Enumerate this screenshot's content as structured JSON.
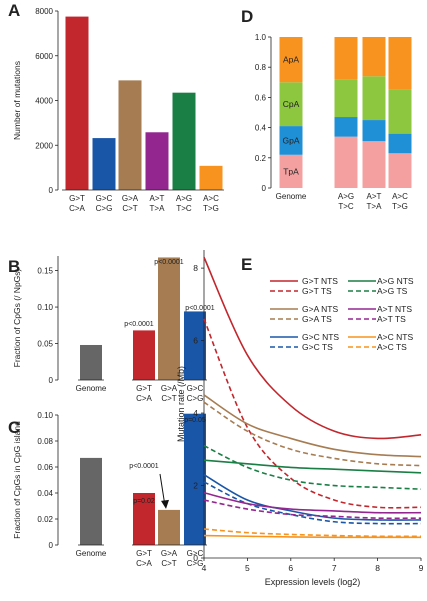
{
  "panel_letters": [
    "A",
    "B",
    "C",
    "D",
    "E"
  ],
  "chart_data": [
    {
      "panel": "A",
      "type": "bar",
      "ylabel": "Number of mutations",
      "ylim": [
        0,
        8000
      ],
      "yticks": [
        0,
        2000,
        4000,
        6000,
        8000
      ],
      "categories": [
        [
          "G>T",
          "C>A"
        ],
        [
          "G>C",
          "C>G"
        ],
        [
          "G>A",
          "C>T"
        ],
        [
          "A>T",
          "T>A"
        ],
        [
          "A>G",
          "T>C"
        ],
        [
          "A>C",
          "T>G"
        ]
      ],
      "values": [
        7750,
        2320,
        4900,
        2580,
        4350,
        1080
      ],
      "colors": [
        "#c1272d",
        "#1a56a8",
        "#a67c52",
        "#93278f",
        "#1a7f45",
        "#f7931e"
      ]
    },
    {
      "panel": "B",
      "type": "bar",
      "ylabel": "Fraction of CpGs (/ NpGs)",
      "ylim": [
        0,
        0.17
      ],
      "yticks": [
        0,
        0.05,
        0.1,
        0.15
      ],
      "ytick_labels": [
        "0",
        "0.05",
        "0.10",
        "0.15"
      ],
      "categories": [
        [
          "Genome"
        ],
        [
          "G>T",
          "C>A"
        ],
        [
          "G>A",
          "C>T"
        ],
        [
          "G>C",
          "C>G"
        ]
      ],
      "values": [
        0.048,
        0.068,
        0.168,
        0.094
      ],
      "annotations": [
        "",
        "p<0.0001",
        "p<0.0001",
        "p<0.0001"
      ],
      "colors": [
        "#666666",
        "#c1272d",
        "#a67c52",
        "#1a56a8"
      ]
    },
    {
      "panel": "C",
      "type": "bar",
      "ylabel": "Fraction of CpGs in CpG island",
      "ylim": [
        0,
        0.1
      ],
      "yticks": [
        0,
        0.02,
        0.04,
        0.06,
        0.08,
        0.1
      ],
      "ytick_labels": [
        "0",
        "0.02",
        "0.04",
        "0.06",
        "0.08",
        "0.10"
      ],
      "categories": [
        [
          "Genome"
        ],
        [
          "G>T",
          "C>A"
        ],
        [
          "G>A",
          "C>T"
        ],
        [
          "G>C",
          "C>G"
        ]
      ],
      "values": [
        0.067,
        0.04,
        0.027,
        0.101
      ],
      "annotations": [
        "",
        "p=0.02",
        "p<0.0001",
        "p=0.05"
      ],
      "colors": [
        "#666666",
        "#c1272d",
        "#a67c52",
        "#1a56a8"
      ]
    },
    {
      "panel": "D",
      "type": "bar",
      "stacked": true,
      "ylim": [
        0,
        1
      ],
      "yticks": [
        0,
        0.2,
        0.4,
        0.6,
        0.8,
        1.0
      ],
      "ytick_labels": [
        "0",
        "0.2",
        "0.4",
        "0.6",
        "0.8",
        "1.0"
      ],
      "categories": [
        [
          "Genome"
        ],
        [
          "A>G",
          "T>C"
        ],
        [
          "A>T",
          "T>A"
        ],
        [
          "A>C",
          "T>G"
        ]
      ],
      "series": [
        {
          "name": "TpA",
          "color": "#f4a0a0",
          "values": [
            0.22,
            0.34,
            0.31,
            0.23
          ]
        },
        {
          "name": "GpA",
          "color": "#1f8fd6",
          "values": [
            0.19,
            0.13,
            0.14,
            0.13
          ]
        },
        {
          "name": "CpA",
          "color": "#8dc63f",
          "values": [
            0.29,
            0.25,
            0.29,
            0.29
          ]
        },
        {
          "name": "ApA",
          "color": "#f7931e",
          "values": [
            0.3,
            0.28,
            0.26,
            0.35
          ]
        }
      ]
    },
    {
      "panel": "E",
      "type": "line",
      "xlabel": "Expression levels (log2)",
      "ylabel": "Mutation rate (/Mb)",
      "xlim": [
        4,
        9
      ],
      "ylim": [
        0,
        8.5
      ],
      "xticks": [
        4,
        5,
        6,
        7,
        8,
        9
      ],
      "yticks": [
        0,
        2,
        4,
        6,
        8
      ],
      "series": [
        {
          "name": "G>T NTS",
          "color": "#c1272d",
          "dash": false,
          "x": [
            4,
            5,
            6,
            7,
            8,
            9
          ],
          "y": [
            8.3,
            5.6,
            4.2,
            3.5,
            3.3,
            3.4
          ]
        },
        {
          "name": "G>T TS",
          "color": "#c1272d",
          "dash": true,
          "x": [
            4,
            5,
            6,
            7,
            8,
            9
          ],
          "y": [
            6.6,
            3.6,
            2.2,
            1.6,
            1.4,
            1.4
          ]
        },
        {
          "name": "G>A NTS",
          "color": "#a67c52",
          "dash": false,
          "x": [
            4,
            5,
            6,
            7,
            8,
            9
          ],
          "y": [
            4.5,
            3.7,
            3.3,
            3.0,
            2.85,
            2.8
          ]
        },
        {
          "name": "G>A TS",
          "color": "#a67c52",
          "dash": true,
          "x": [
            4,
            5,
            6,
            7,
            8,
            9
          ],
          "y": [
            4.3,
            3.5,
            3.0,
            2.75,
            2.6,
            2.55
          ]
        },
        {
          "name": "G>C NTS",
          "color": "#1a56a8",
          "dash": false,
          "x": [
            4,
            5,
            6,
            7,
            8,
            9
          ],
          "y": [
            2.3,
            1.6,
            1.3,
            1.1,
            1.05,
            1.05
          ]
        },
        {
          "name": "G>C TS",
          "color": "#1a56a8",
          "dash": true,
          "x": [
            4,
            5,
            6,
            7,
            8,
            9
          ],
          "y": [
            2.1,
            1.5,
            1.2,
            1.0,
            0.95,
            0.95
          ]
        },
        {
          "name": "A>G NTS",
          "color": "#1a7f45",
          "dash": false,
          "x": [
            4,
            5,
            6,
            7,
            8,
            9
          ],
          "y": [
            2.7,
            2.6,
            2.5,
            2.45,
            2.4,
            2.35
          ]
        },
        {
          "name": "A>G TS",
          "color": "#1a7f45",
          "dash": true,
          "x": [
            4,
            5,
            6,
            7,
            8,
            9
          ],
          "y": [
            3.1,
            2.5,
            2.15,
            2.0,
            1.95,
            1.9
          ]
        },
        {
          "name": "A>T NTS",
          "color": "#93278f",
          "dash": false,
          "x": [
            4,
            5,
            6,
            7,
            8,
            9
          ],
          "y": [
            1.8,
            1.5,
            1.35,
            1.3,
            1.25,
            1.25
          ]
        },
        {
          "name": "A>T TS",
          "color": "#93278f",
          "dash": true,
          "x": [
            4,
            5,
            6,
            7,
            8,
            9
          ],
          "y": [
            1.6,
            1.35,
            1.2,
            1.15,
            1.1,
            1.1
          ]
        },
        {
          "name": "A>C NTS",
          "color": "#f7931e",
          "dash": false,
          "x": [
            4,
            5,
            6,
            7,
            8,
            9
          ],
          "y": [
            0.62,
            0.6,
            0.58,
            0.57,
            0.57,
            0.57
          ]
        },
        {
          "name": "A>C TS",
          "color": "#f7931e",
          "dash": true,
          "x": [
            4,
            5,
            6,
            7,
            8,
            9
          ],
          "y": [
            0.8,
            0.7,
            0.65,
            0.62,
            0.6,
            0.6
          ]
        }
      ]
    }
  ]
}
